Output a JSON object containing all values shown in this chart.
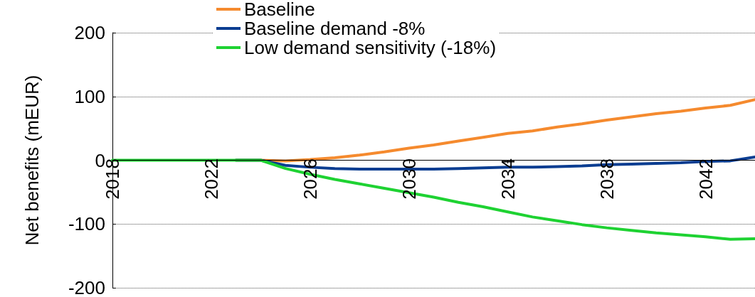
{
  "chart_data": {
    "type": "line",
    "ylabel": "Net benefits (mEUR)",
    "x": [
      2018,
      2019,
      2020,
      2021,
      2022,
      2023,
      2024,
      2025,
      2026,
      2027,
      2028,
      2029,
      2030,
      2031,
      2032,
      2033,
      2034,
      2035,
      2036,
      2037,
      2038,
      2039,
      2040,
      2041,
      2042,
      2043,
      2044
    ],
    "series": [
      {
        "name": "Baseline",
        "color": "#f58a2e",
        "values": [
          null,
          null,
          null,
          null,
          null,
          0,
          0,
          -1,
          1,
          4,
          8,
          13,
          19,
          24,
          30,
          36,
          42,
          46,
          52,
          57,
          63,
          68,
          73,
          77,
          82,
          86,
          95
        ]
      },
      {
        "name": "Baseline demand -8%",
        "color": "#0a3d91",
        "values": [
          null,
          null,
          null,
          null,
          null,
          0,
          0,
          -8,
          -11,
          -13,
          -14,
          -14,
          -14,
          -14,
          -13,
          -12,
          -11,
          -11,
          -10,
          -9,
          -7,
          -6,
          -5,
          -4,
          -2,
          -1,
          5
        ]
      },
      {
        "name": "Low demand sensitivity (-18%)",
        "color": "#1ed232",
        "values": [
          0,
          0,
          0,
          0,
          0,
          0,
          0,
          -13,
          -22,
          -30,
          -37,
          -44,
          -51,
          -58,
          -66,
          -73,
          -81,
          -89,
          -95,
          -101,
          -106,
          -110,
          -114,
          -117,
          -120,
          -124,
          -123
        ]
      }
    ],
    "xlim": [
      2018,
      2044
    ],
    "xticks": [
      2018,
      2022,
      2026,
      2030,
      2034,
      2038,
      2042
    ],
    "ylim": [
      -200,
      200
    ],
    "yticks": [
      -200,
      -100,
      0,
      100,
      200
    ],
    "grid": "y",
    "legend": "top",
    "marker": "none",
    "line_style": "solid"
  }
}
